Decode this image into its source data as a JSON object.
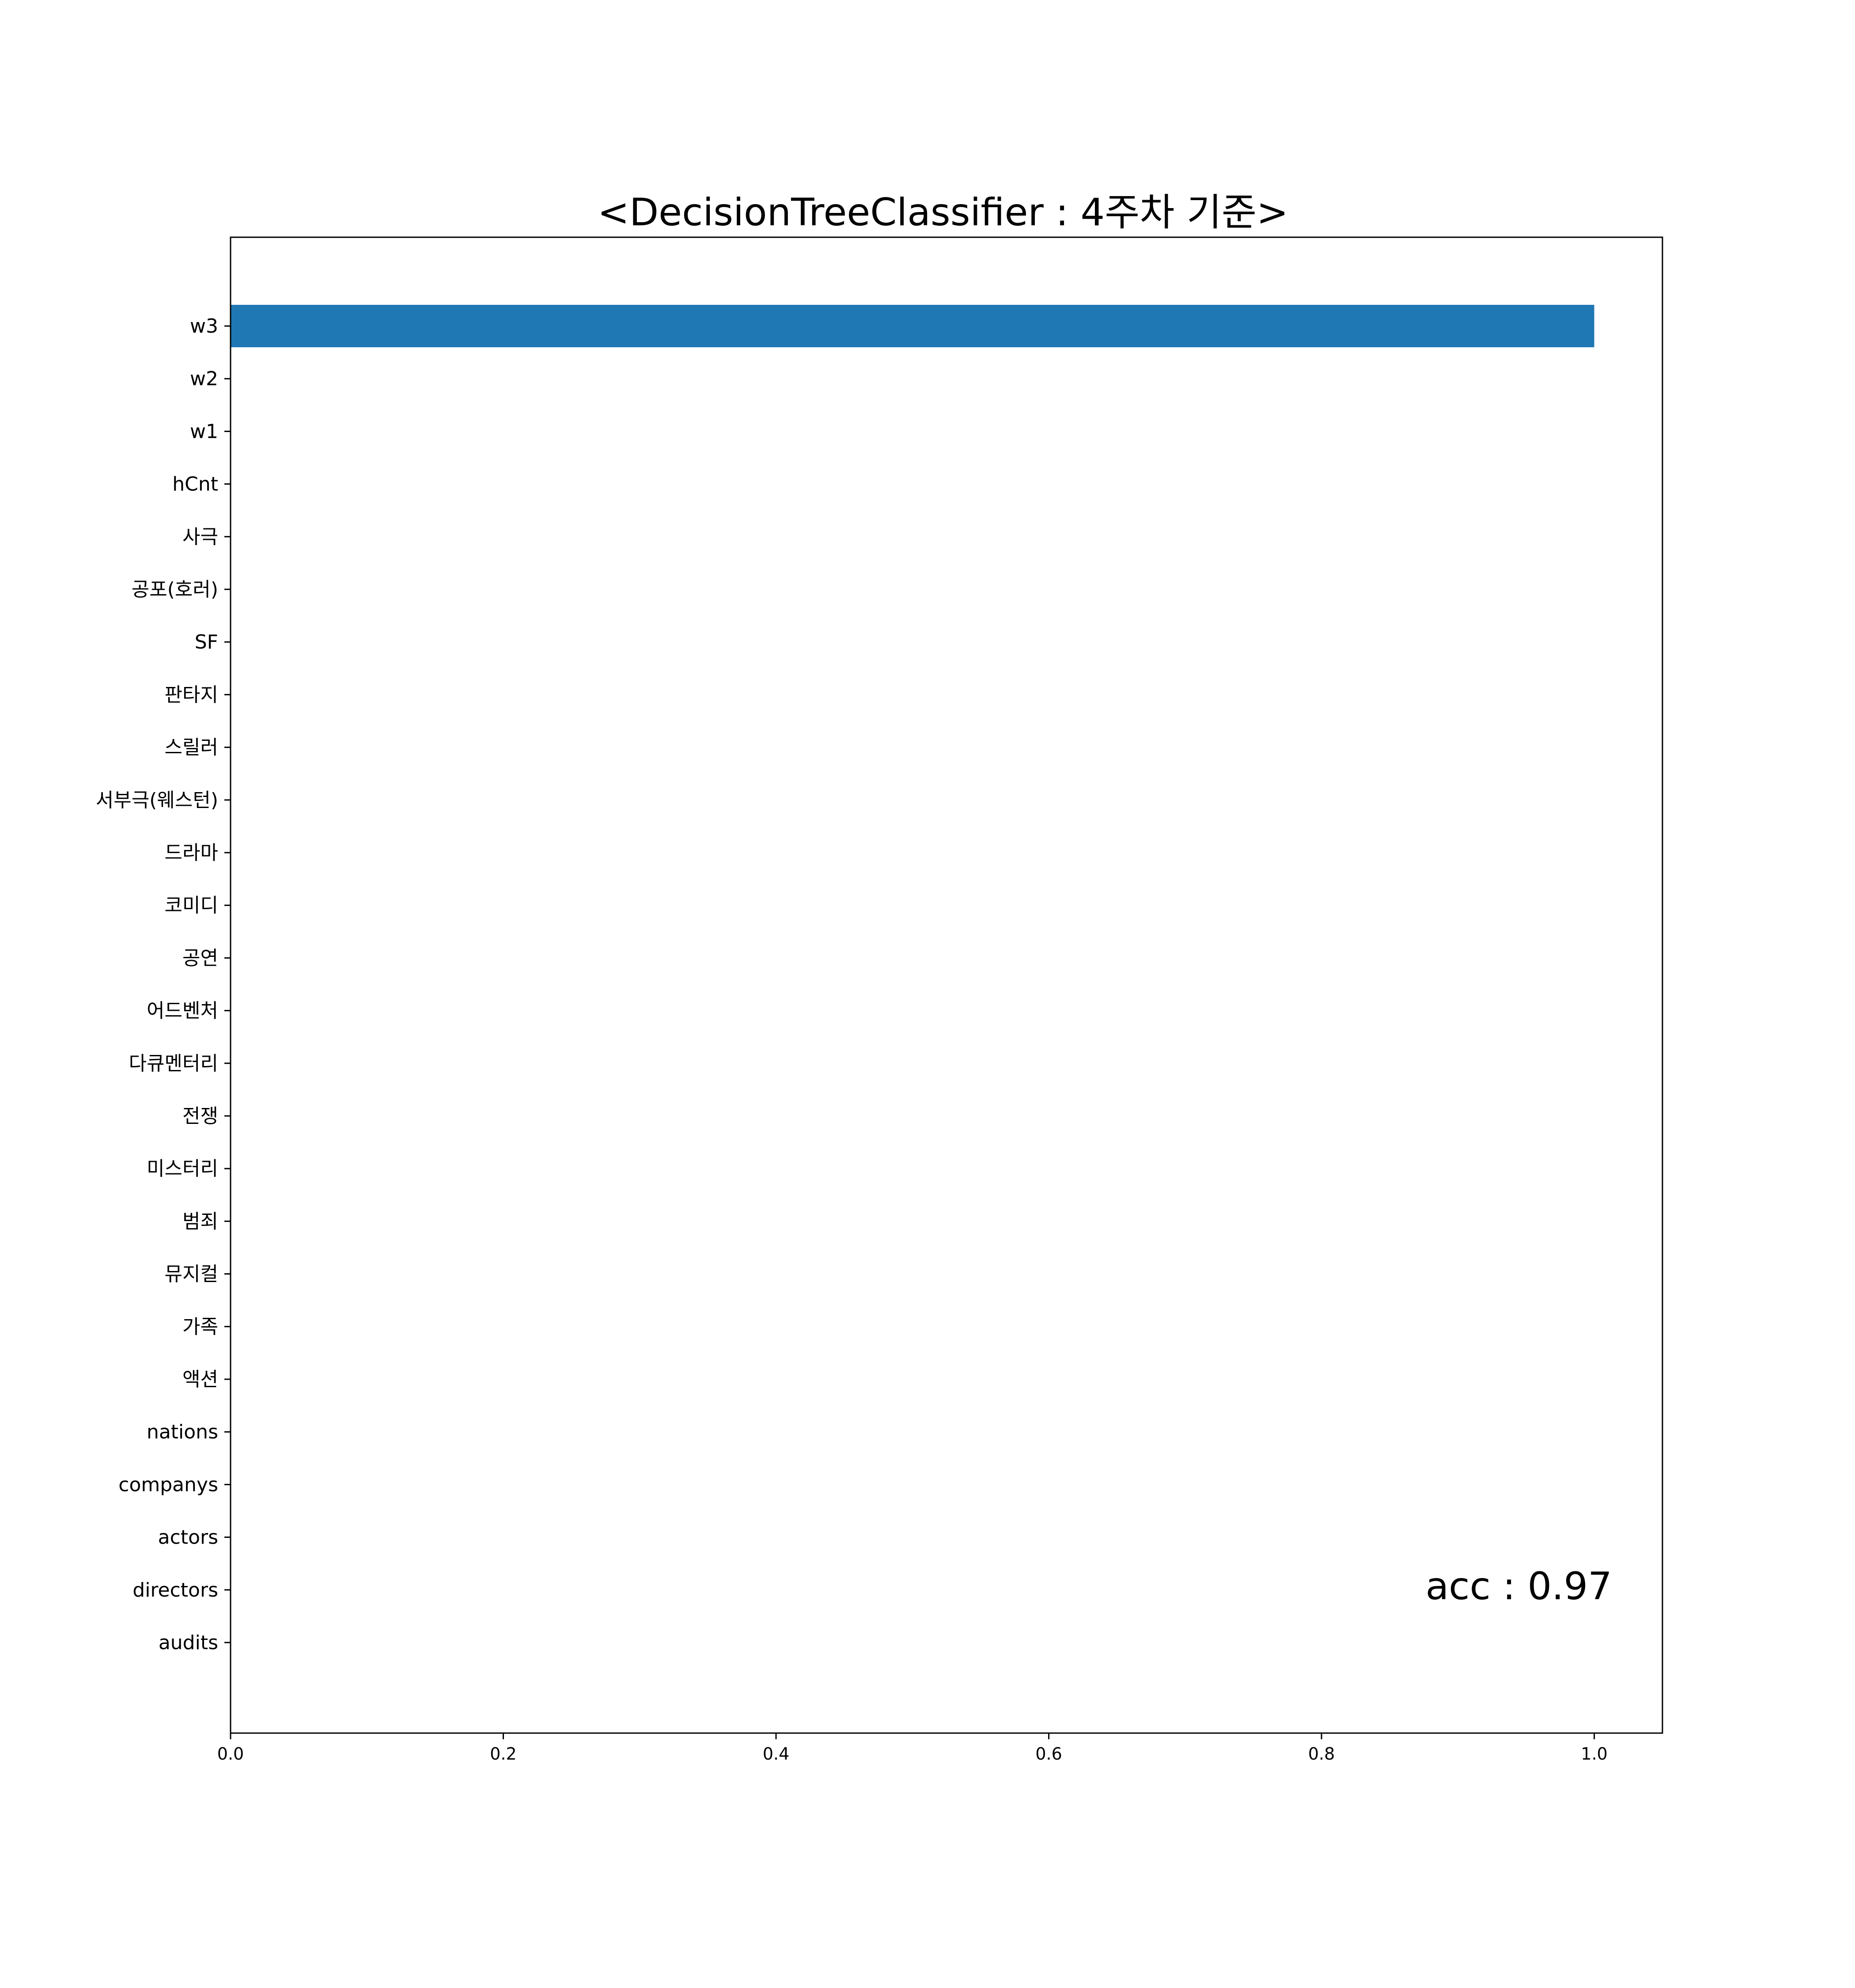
{
  "chart_data": {
    "type": "bar",
    "orientation": "horizontal",
    "title": "<DecisionTreeClassifier : 4주차 기준>",
    "xlabel": "",
    "ylabel": "",
    "categories": [
      "w3",
      "w2",
      "w1",
      "hCnt",
      "사극",
      "공포(호러)",
      "SF",
      "판타지",
      "스릴러",
      "서부극(웨스턴)",
      "드라마",
      "코미디",
      "공연",
      "어드벤처",
      "다큐멘터리",
      "전쟁",
      "미스터리",
      "범죄",
      "뮤지컬",
      "가족",
      "액션",
      "nations",
      "companys",
      "actors",
      "directors",
      "audits"
    ],
    "values": [
      1.0,
      0,
      0,
      0,
      0,
      0,
      0,
      0,
      0,
      0,
      0,
      0,
      0,
      0,
      0,
      0,
      0,
      0,
      0,
      0,
      0,
      0,
      0,
      0,
      0,
      0
    ],
    "xlim": [
      0.0,
      1.05
    ],
    "xticks": [
      "0.0",
      "0.2",
      "0.4",
      "0.6",
      "0.8",
      "1.0"
    ],
    "grid": false,
    "bar_color": "#1f77b4",
    "annotation": "acc : 0.97"
  }
}
